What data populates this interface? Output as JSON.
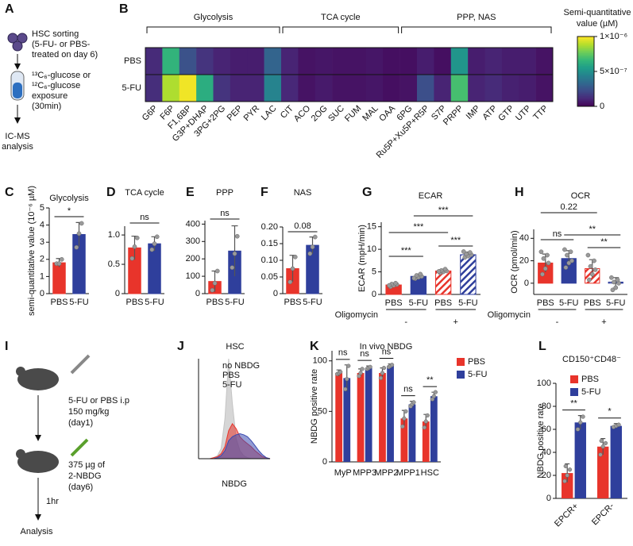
{
  "panel_labels": [
    "A",
    "B",
    "C",
    "D",
    "E",
    "F",
    "G",
    "H",
    "I",
    "J",
    "K",
    "L"
  ],
  "diagram_a": {
    "step1": [
      "HSC sorting",
      "(5-FU- or PBS-",
      "treated on day 6)"
    ],
    "step2": [
      "¹³C₆-glucose or",
      "¹²C₆-glucose",
      "exposure",
      "(30min)"
    ],
    "step3": [
      "IC-MS",
      "analysis"
    ]
  },
  "diagram_i": {
    "step1": [
      "5-FU or PBS i.p",
      "150 mg/kg",
      "(day1)"
    ],
    "step2": [
      "375 µg of",
      "2-NBDG",
      "(day6)"
    ],
    "interval": "1hr",
    "step3": "Analysis"
  },
  "chart_data": [
    {
      "type": "heatmap",
      "groups": [
        "Glycolysis",
        "TCA cycle",
        "PPP, NAS"
      ],
      "rows": [
        "PBS",
        "5-FU"
      ],
      "columns": [
        "G6P",
        "F6P",
        "F1,6BP",
        "G3P+DHAP",
        "3PG+2PG",
        "PEP",
        "PYR",
        "LAC",
        "CIT",
        "ACO",
        "2OG",
        "SUC",
        "FUM",
        "MAL",
        "OAA",
        "6PG",
        "Ru5P+Xu5P+R5P",
        "S7P",
        "PRPP",
        "IMP",
        "ATP",
        "GTP",
        "UTP",
        "TTP"
      ],
      "values": [
        [
          1.2e-07,
          6.5e-07,
          2.5e-07,
          1.5e-07,
          1e-07,
          8e-08,
          8e-08,
          3.2e-07,
          1e-07,
          5e-08,
          6e-08,
          5e-08,
          5e-08,
          6e-08,
          4e-08,
          4e-08,
          8e-08,
          4e-08,
          5.2e-07,
          8e-08,
          1e-07,
          8e-08,
          8e-08,
          5e-08
        ],
        [
          1.3e-07,
          8.8e-07,
          9.8e-07,
          6.2e-07,
          1.5e-07,
          1e-07,
          1e-07,
          4.5e-07,
          1.1e-07,
          5e-08,
          7e-08,
          5e-08,
          5e-08,
          6e-08,
          4e-08,
          5e-08,
          2.4e-07,
          1e-07,
          7e-07,
          1e-07,
          1.2e-07,
          9e-08,
          8e-08,
          5e-08
        ]
      ],
      "colormap": "viridis",
      "clim": [
        0,
        1e-06
      ],
      "colorbar_title": [
        "Semi-quantitative",
        "value (µM)"
      ],
      "colorbar_ticks": [
        {
          "value": 1e-06,
          "label": "1×10⁻⁶"
        },
        {
          "value": 5e-07,
          "label": "5×10⁻⁷"
        },
        0
      ]
    },
    {
      "type": "bar",
      "title": "Glycolysis",
      "y_label": "semi-quantitative value (10⁻⁶ µM)",
      "categories": [
        "PBS",
        "5-FU"
      ],
      "colors": [
        "#e8342b",
        "#2f3f9c"
      ],
      "values": [
        1.8,
        3.45
      ],
      "errors": [
        0.25,
        0.7
      ],
      "points": [
        [
          1.75,
          1.75,
          2.0
        ],
        [
          2.7,
          3.5,
          4.1
        ]
      ],
      "ylim": [
        0,
        5
      ],
      "yticks": [
        0,
        1,
        2,
        3,
        4,
        5
      ],
      "annotations": [
        "*"
      ]
    },
    {
      "type": "bar",
      "title": "TCA cycle",
      "categories": [
        "PBS",
        "5-FU"
      ],
      "colors": [
        "#e8342b",
        "#2f3f9c"
      ],
      "values": [
        0.78,
        0.85
      ],
      "errors": [
        0.2,
        0.12
      ],
      "points": [
        [
          0.6,
          0.8,
          0.95
        ],
        [
          0.75,
          0.85,
          0.97
        ]
      ],
      "ylim": [
        0,
        1.15
      ],
      "yticks": [
        0,
        0.5,
        {
          "value": 1,
          "label": "1.0"
        }
      ],
      "annotations": [
        "ns"
      ]
    },
    {
      "type": "bar",
      "title": "PPP",
      "categories": [
        "PBS",
        "5-FU"
      ],
      "colors": [
        "#e8342b",
        "#2f3f9c"
      ],
      "values": [
        70,
        245
      ],
      "errors": [
        60,
        145
      ],
      "points": [
        [
          20,
          60,
          130
        ],
        [
          150,
          230,
          330
        ]
      ],
      "ylim": [
        0,
        420
      ],
      "yticks": [
        0,
        100,
        200,
        300,
        400
      ],
      "annotations": [
        "ns"
      ]
    },
    {
      "type": "bar",
      "title": "NAS",
      "categories": [
        "PBS",
        "5-FU"
      ],
      "colors": [
        "#e8342b",
        "#2f3f9c"
      ],
      "values": [
        0.075,
        0.145
      ],
      "errors": [
        0.04,
        0.025
      ],
      "points": [
        [
          0.035,
          0.075,
          0.11
        ],
        [
          0.12,
          0.14,
          0.17
        ]
      ],
      "ylim": [
        0,
        0.2
      ],
      "yticks": [
        0,
        0.05,
        {
          "value": 0.1,
          "label": "0.10"
        },
        0.15,
        {
          "value": 0.2,
          "label": "0.20"
        }
      ],
      "annotations": [
        "0.08"
      ]
    },
    {
      "type": "bar",
      "title": "ECAR",
      "y_label": "ECAR (mpH/min)",
      "categories": [
        "PBS",
        "5-FU",
        "PBS",
        "5-FU"
      ],
      "colors": [
        "#e8342b",
        "#2f3f9c",
        "#e8342b",
        "#2f3f9c"
      ],
      "hatched": [
        false,
        false,
        true,
        true
      ],
      "values": [
        2.1,
        4.0,
        5.2,
        8.8
      ],
      "errors": [
        0.4,
        0.5,
        0.4,
        0.6
      ],
      "points": [
        [
          1.7,
          2.0,
          2.2,
          2.3,
          2.5,
          2.0
        ],
        [
          3.5,
          3.8,
          4.0,
          4.2,
          4.5,
          3.6
        ],
        [
          4.8,
          5.0,
          5.2,
          5.3,
          5.6,
          5.1
        ],
        [
          8.2,
          8.5,
          8.8,
          9.0,
          9.3,
          9.5
        ]
      ],
      "ylim": [
        0,
        16
      ],
      "yticks": [
        0,
        5,
        10,
        15
      ],
      "group_label": "Oligomycin",
      "groups": [
        "-",
        "+"
      ],
      "annotations": [
        "***",
        "***",
        "***",
        "***"
      ]
    },
    {
      "type": "bar",
      "title": "OCR",
      "y_label": "OCR (pmol/min)",
      "categories": [
        "PBS",
        "5-FU",
        "PBS",
        "5-FU"
      ],
      "colors": [
        "#e8342b",
        "#2f3f9c",
        "#e8342b",
        "#2f3f9c"
      ],
      "hatched": [
        false,
        false,
        true,
        true
      ],
      "values": [
        18,
        22,
        13,
        1
      ],
      "errors": [
        8,
        7,
        8,
        4
      ],
      "points": [
        [
          8,
          13,
          18,
          22,
          25,
          28
        ],
        [
          14,
          18,
          20,
          25,
          28,
          30
        ],
        [
          3,
          8,
          12,
          15,
          20,
          25
        ],
        [
          -6,
          -4,
          0,
          1,
          3,
          5
        ]
      ],
      "ylim": [
        -10,
        48
      ],
      "yticks": [
        0,
        20,
        40
      ],
      "group_label": "Oligomycin",
      "groups": [
        "-",
        "+"
      ],
      "annotations": [
        "0.22",
        "ns",
        "**",
        "**"
      ]
    },
    {
      "type": "density",
      "title": "HSC",
      "x_label": "NBDG",
      "ylim": [
        0,
        100
      ],
      "series": [
        {
          "name": "no NBDG",
          "color": "#c4c4c4",
          "values": [
            0,
            0,
            0,
            0,
            1,
            3,
            10,
            40,
            100,
            55,
            20,
            8,
            3,
            1,
            0,
            0,
            0,
            0,
            0,
            0
          ]
        },
        {
          "name": "PBS",
          "color": "#e8342b",
          "values": [
            0,
            0,
            0,
            0,
            1,
            2,
            5,
            12,
            28,
            35,
            30,
            22,
            18,
            15,
            12,
            8,
            5,
            2,
            1,
            0
          ]
        },
        {
          "name": "5-FU",
          "color": "#3a4ab0",
          "values": [
            0,
            0,
            0,
            0,
            0,
            1,
            3,
            8,
            18,
            22,
            24,
            25,
            24,
            22,
            18,
            13,
            8,
            4,
            1,
            0
          ]
        }
      ]
    },
    {
      "type": "grouped_bar",
      "title": "In vivo NBDG",
      "y_label": "NBDG positive rate",
      "categories": [
        "MyP",
        "MPP3",
        "MPP2",
        "MPP1",
        "HSC"
      ],
      "series": [
        {
          "name": "PBS",
          "color": "#e8342b",
          "values": [
            88,
            88,
            88,
            43,
            40
          ],
          "errors": [
            3,
            4,
            5,
            8,
            7
          ],
          "points": [
            [
              87,
              88,
              89
            ],
            [
              85,
              88,
              92
            ],
            [
              83,
              88,
              93
            ],
            [
              35,
              43,
              50
            ],
            [
              34,
              40,
              46
            ]
          ]
        },
        {
          "name": "5-FU",
          "color": "#2f3f9c",
          "values": [
            83,
            93,
            95,
            57,
            65
          ],
          "errors": [
            13,
            2,
            2,
            3,
            4
          ],
          "points": [
            [
              72,
              82,
              95
            ],
            [
              92,
              93,
              94
            ],
            [
              94,
              95,
              96
            ],
            [
              55,
              57,
              59
            ],
            [
              62,
              65,
              69
            ]
          ]
        }
      ],
      "ylim": [
        0,
        110
      ],
      "yticks": [
        0,
        50,
        100
      ],
      "annotations": [
        "ns",
        "ns",
        "ns",
        "ns",
        "**"
      ]
    },
    {
      "type": "grouped_bar",
      "title": "CD150⁺CD48⁻",
      "y_label": "NBDG positive rate",
      "categories": [
        "EPCR+",
        "EPCR-"
      ],
      "series": [
        {
          "name": "PBS",
          "color": "#e8342b",
          "values": [
            22,
            45
          ],
          "errors": [
            8,
            7
          ],
          "points": [
            [
              15,
              20,
              25,
              28
            ],
            [
              38,
              45,
              48,
              50
            ]
          ]
        },
        {
          "name": "5-FU",
          "color": "#2f3f9c",
          "values": [
            66,
            63
          ],
          "errors": [
            6,
            2
          ],
          "points": [
            [
              60,
              66,
              71
            ],
            [
              62,
              63,
              64
            ]
          ]
        }
      ],
      "ylim": [
        0,
        100
      ],
      "yticks": [
        0,
        20,
        40,
        60,
        80,
        100
      ],
      "annotations": [
        "**",
        "*"
      ]
    }
  ]
}
